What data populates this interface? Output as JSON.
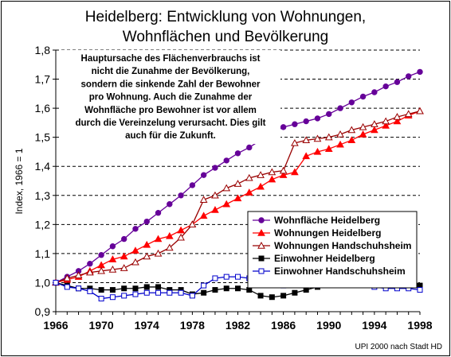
{
  "chart_data": {
    "type": "line",
    "title": [
      "Heidelberg: Entwicklung von Wohnungen,",
      "Wohnflächen und Bevölkerung"
    ],
    "ylabel": "Index, 1966 = 1",
    "xlabel": "",
    "xlim": [
      1966,
      1998
    ],
    "ylim": [
      0.9,
      1.8
    ],
    "x_ticks": [
      "1966",
      "1970",
      "1974",
      "1978",
      "1982",
      "1986",
      "1990",
      "1994",
      "1998"
    ],
    "y_ticks": [
      "0,9",
      "1,0",
      "1,1",
      "1,2",
      "1,3",
      "1,4",
      "1,5",
      "1,6",
      "1,7",
      "1,8"
    ],
    "grid": "horizontal dashed",
    "legend_position": "bottom-right",
    "annotation": [
      "Hauptursache des Flächenverbrauchs ist",
      "nicht die Zunahme der Bevölkerung,",
      "sondern die sinkende Zahl der Bewohner",
      "pro Wohnung. Auch die Zunahme der",
      "Wohnfläche pro Bewohner ist vor allem",
      "durch die Vereinzelung verursacht. Dies gilt",
      "auch für die Zukunft."
    ],
    "source": "UPI 2000 nach Stadt HD",
    "x": [
      1966,
      1967,
      1968,
      1969,
      1970,
      1971,
      1972,
      1973,
      1974,
      1975,
      1976,
      1977,
      1978,
      1979,
      1980,
      1981,
      1982,
      1983,
      1984,
      1985,
      1986,
      1987,
      1988,
      1989,
      1990,
      1991,
      1992,
      1993,
      1994,
      1995,
      1996,
      1997,
      1998
    ],
    "series": [
      {
        "name": "Wohnfläche Heidelberg",
        "color": "#660099",
        "marker": "circle",
        "values": [
          1.0,
          1.02,
          1.04,
          1.065,
          1.095,
          1.125,
          1.15,
          1.185,
          1.21,
          1.24,
          1.27,
          1.3,
          1.335,
          1.37,
          1.395,
          1.42,
          1.445,
          1.465,
          1.49,
          1.515,
          1.535,
          1.545,
          1.555,
          1.565,
          1.58,
          1.6,
          1.62,
          1.64,
          1.655,
          1.675,
          1.69,
          1.71,
          1.725
        ]
      },
      {
        "name": "Wohnungen Heidelberg",
        "color": "#ff0000",
        "marker": "triangle-filled",
        "values": [
          1.0,
          1.01,
          1.02,
          1.04,
          1.06,
          1.08,
          1.09,
          1.11,
          1.13,
          1.15,
          1.16,
          1.18,
          1.2,
          1.23,
          1.25,
          1.27,
          1.29,
          1.31,
          1.33,
          1.355,
          1.37,
          1.38,
          1.435,
          1.45,
          1.46,
          1.475,
          1.49,
          1.51,
          1.525,
          1.54,
          1.555,
          1.575,
          1.59
        ]
      },
      {
        "name": "Wohnungen Handschuhsheim",
        "color": "#990000",
        "marker": "triangle-open",
        "values": [
          1.0,
          1.015,
          1.025,
          1.035,
          1.04,
          1.045,
          1.05,
          1.07,
          1.09,
          1.1,
          1.12,
          1.155,
          1.2,
          1.285,
          1.3,
          1.325,
          1.34,
          1.36,
          1.37,
          1.38,
          1.385,
          1.48,
          1.49,
          1.495,
          1.5,
          1.51,
          1.525,
          1.535,
          1.545,
          1.555,
          1.57,
          1.58,
          1.59
        ]
      },
      {
        "name": "Einwohner Heidelberg",
        "color": "#000000",
        "marker": "square-filled",
        "values": [
          1.0,
          0.99,
          0.98,
          0.98,
          0.975,
          0.975,
          0.98,
          0.98,
          0.985,
          0.985,
          0.975,
          0.975,
          0.96,
          0.965,
          0.975,
          0.98,
          0.98,
          0.975,
          0.955,
          0.95,
          0.955,
          0.965,
          0.975,
          0.985,
          1.0,
          1.005,
          1.005,
          1.0,
          0.995,
          0.99,
          0.99,
          0.995,
          0.99
        ]
      },
      {
        "name": "Einwohner Handschuhsheim",
        "color": "#0000cc",
        "marker": "square-open",
        "values": [
          1.0,
          0.985,
          0.98,
          0.97,
          0.945,
          0.95,
          0.955,
          0.96,
          0.965,
          0.965,
          0.965,
          0.965,
          0.955,
          0.99,
          1.015,
          1.02,
          1.02,
          1.015,
          1.005,
          1.0,
          0.99,
          0.995,
          0.995,
          0.99,
          0.995,
          1.005,
          1.01,
          0.995,
          0.985,
          0.98,
          0.98,
          0.98,
          0.975
        ]
      }
    ]
  }
}
